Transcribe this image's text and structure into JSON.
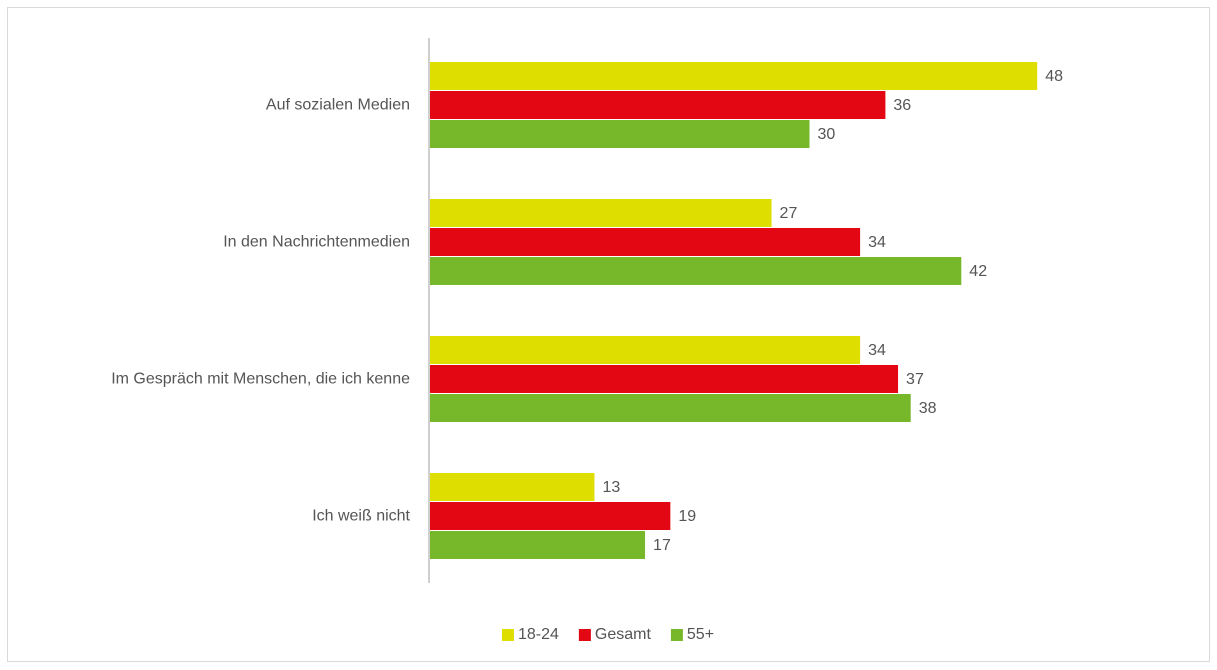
{
  "chart_data": {
    "type": "bar",
    "orientation": "horizontal",
    "categories": [
      "Auf sozialen Medien",
      "In den Nachrichtenmedien",
      "Im Gespräch mit Menschen, die ich kenne",
      "Ich weiß nicht"
    ],
    "series": [
      {
        "name": "18-24",
        "color": "#dede00",
        "values": [
          48,
          27,
          34,
          13
        ]
      },
      {
        "name": "Gesamt",
        "color": "#e30613",
        "values": [
          36,
          34,
          37,
          19
        ]
      },
      {
        "name": "55+",
        "color": "#76b82a",
        "values": [
          30,
          42,
          38,
          17
        ]
      }
    ],
    "legend": "bottom"
  }
}
